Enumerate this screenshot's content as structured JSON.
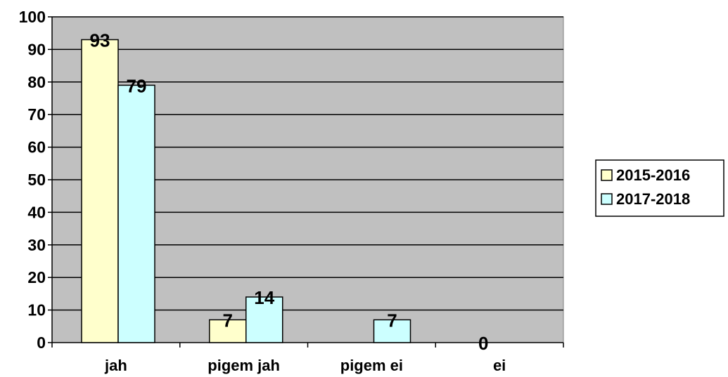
{
  "chart_data": {
    "type": "bar",
    "title": "",
    "xlabel": "",
    "ylabel": "",
    "categories": [
      "jah",
      "pigem jah",
      "pigem ei",
      "ei"
    ],
    "series": [
      {
        "name": "2015-2016",
        "values": [
          93,
          7,
          0,
          0
        ],
        "labels": [
          "93",
          "7",
          "",
          "0"
        ],
        "color": "#FFFFCC"
      },
      {
        "name": "2017-2018",
        "values": [
          79,
          14,
          7,
          0
        ],
        "labels": [
          "79",
          "14",
          "7",
          ""
        ],
        "color": "#CCFFFF"
      }
    ],
    "ylim": [
      0,
      100
    ],
    "yticks": [
      0,
      10,
      20,
      30,
      40,
      50,
      60,
      70,
      80,
      90,
      100
    ],
    "ytick_labels": [
      "0",
      "10",
      "20",
      "30",
      "40",
      "50",
      "60",
      "70",
      "80",
      "90",
      "100"
    ],
    "grid": true,
    "legend": "right",
    "plot_background": "#C0C0C0",
    "gridline_color": "#000000"
  }
}
